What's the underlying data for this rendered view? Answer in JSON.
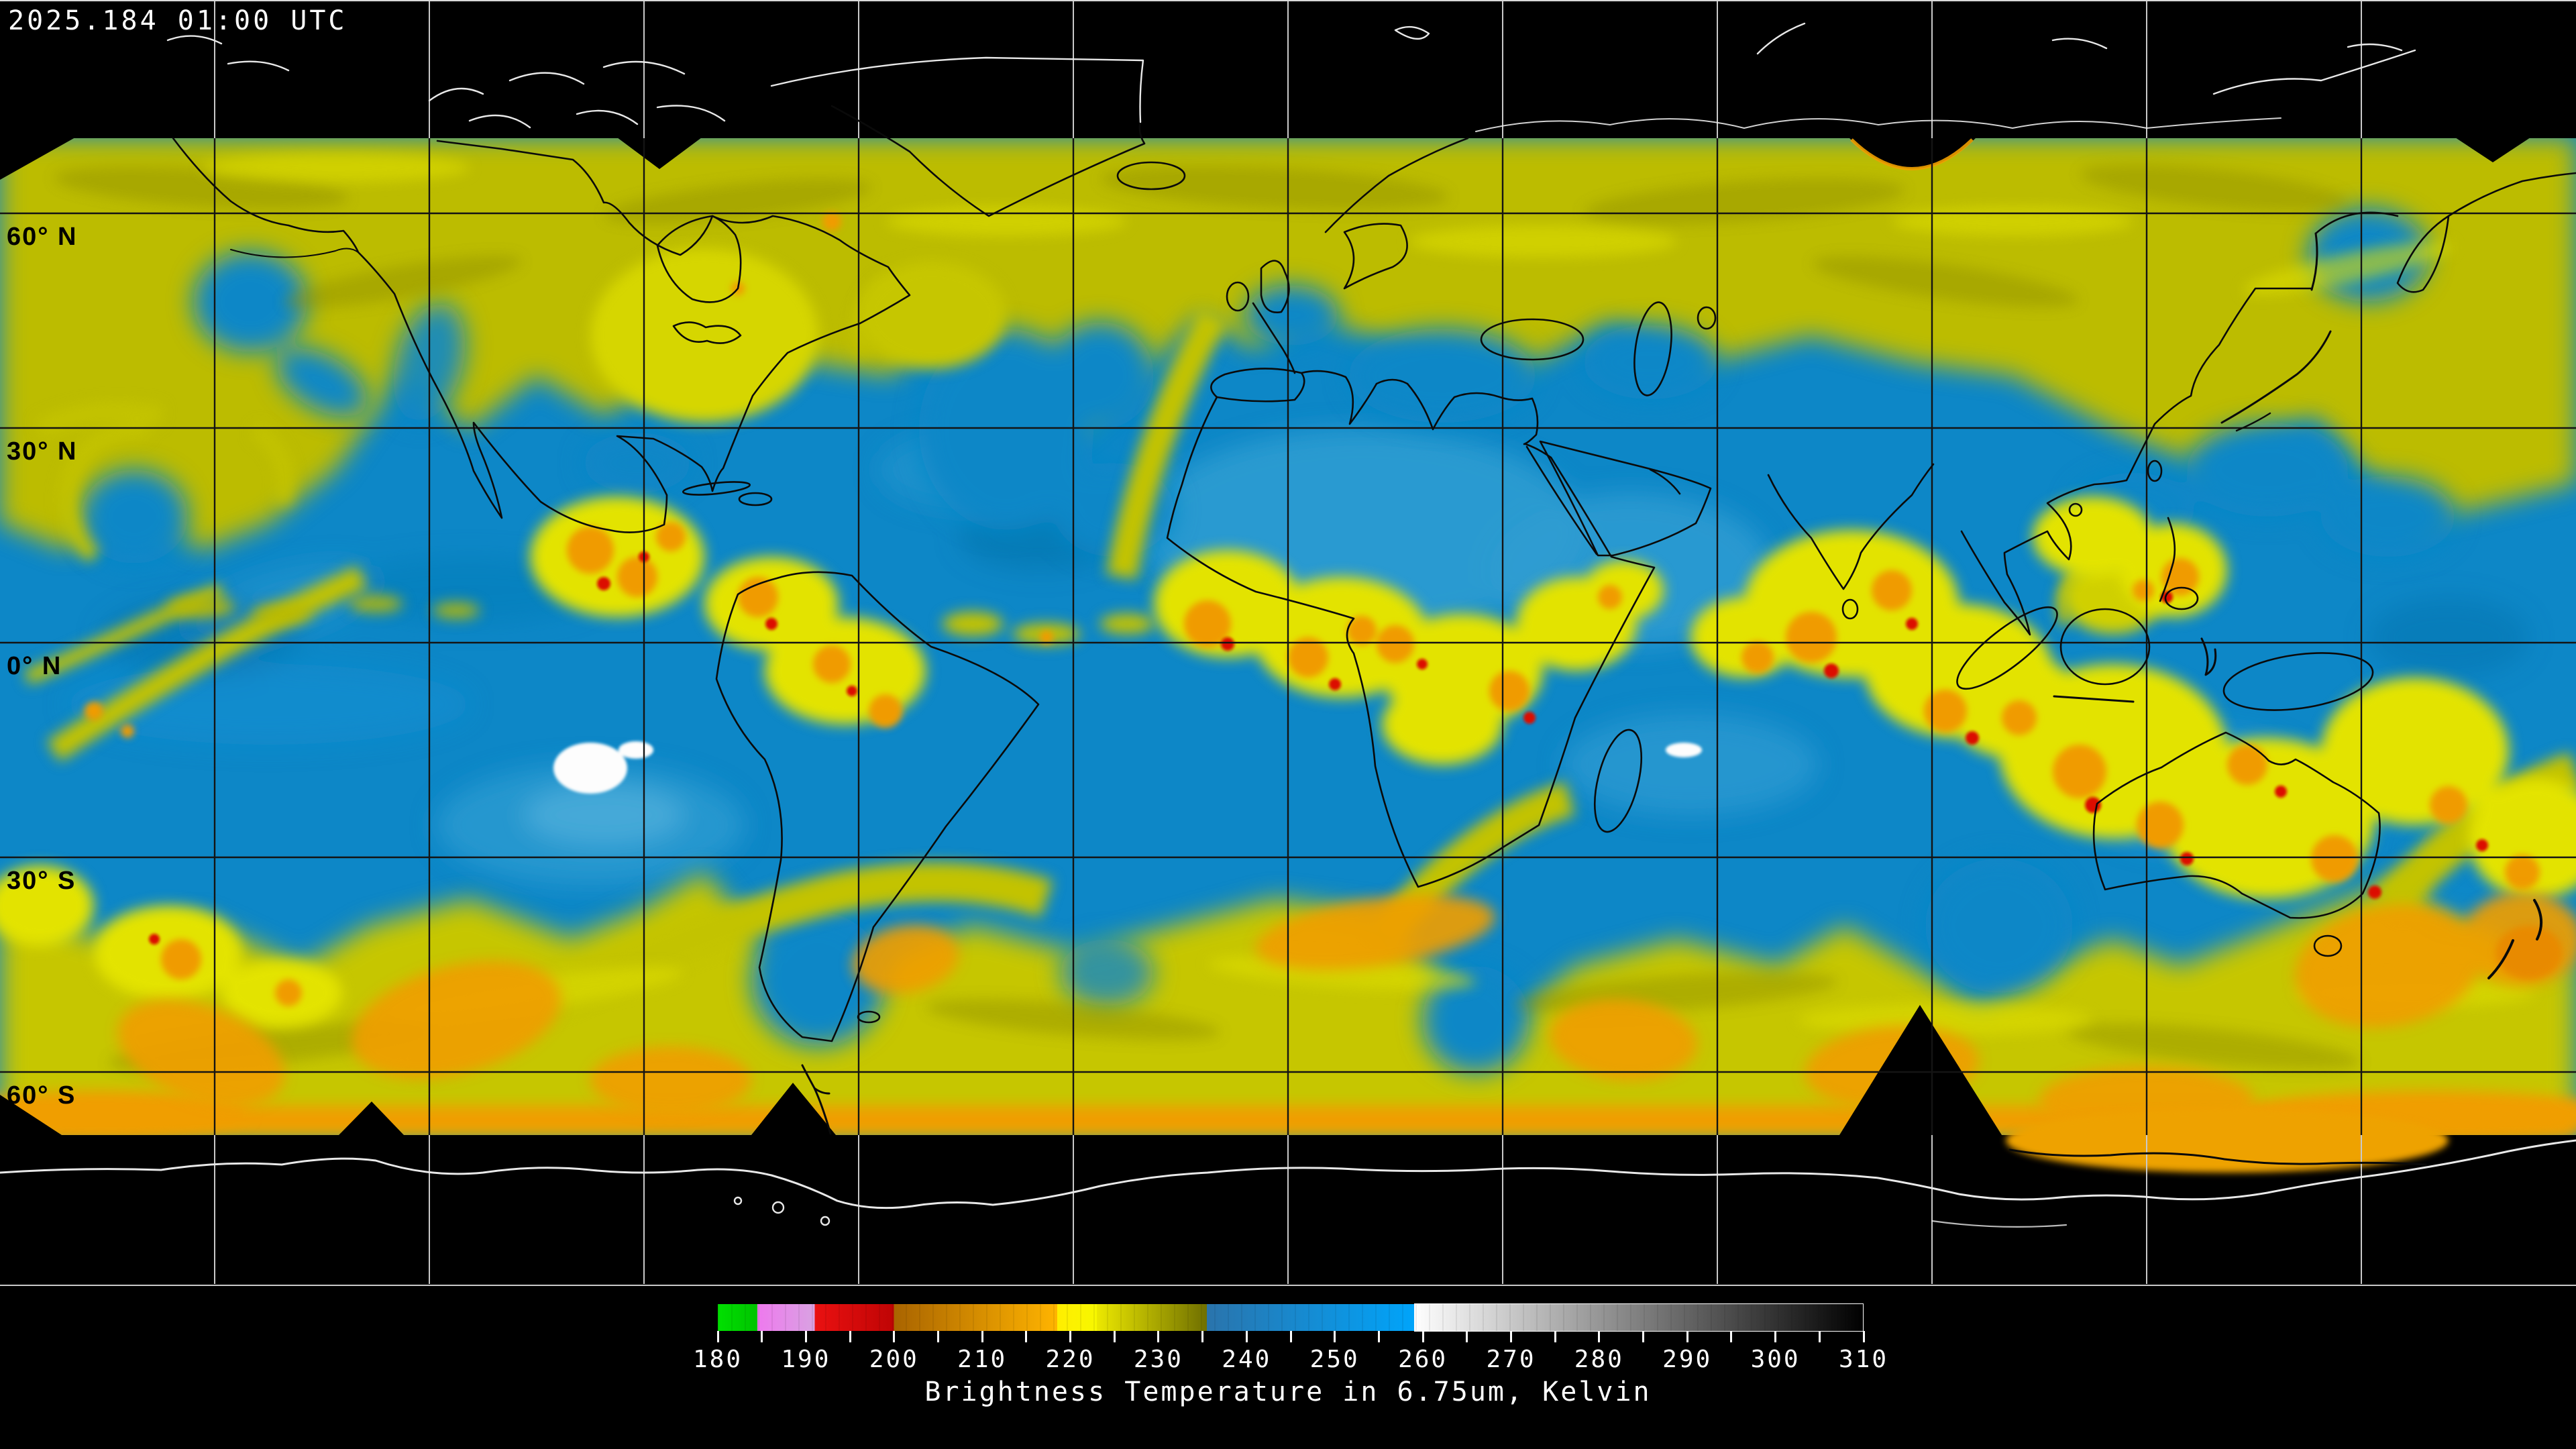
{
  "header": {
    "timestamp": "2025.184 01:00 UTC"
  },
  "map": {
    "description": "Global satellite water vapor brightness temperature mosaic",
    "projection": "equirectangular",
    "lat_labels": [
      {
        "text": "60° N"
      },
      {
        "text": "30° N"
      },
      {
        "text": "0° N"
      },
      {
        "text": "30° S"
      },
      {
        "text": "60° S"
      }
    ],
    "grid_lon_interval_deg": 30,
    "grid_lat_interval_deg": 30,
    "colors": {
      "moist_cloud_yellow": "#c3c300",
      "dry_upper_air_blue": "#0d87c7",
      "convection_orange": "#f09b00",
      "deep_convection_red": "#dc0d00",
      "coldest_cloud_white": "#ffffff",
      "space_background": "#000000",
      "coastline_over_data": "#000000",
      "coastline_over_space": "#e8e8e8"
    }
  },
  "colorbar": {
    "title": "Brightness Temperature in 6.75um, Kelvin",
    "unit": "Kelvin",
    "min": 180,
    "max": 310,
    "minor_tick_step": 5,
    "major_tick_labels": [
      180,
      190,
      200,
      210,
      220,
      230,
      240,
      250,
      260,
      270,
      280,
      290,
      300,
      310
    ],
    "segments": [
      {
        "from": 180,
        "to": 184.5,
        "color_start": "#00e000",
        "color_end": "#00c300"
      },
      {
        "from": 184.5,
        "to": 191,
        "color_start": "#ee79ee",
        "color_end": "#d9a2e2"
      },
      {
        "from": 191,
        "to": 200,
        "color_start": "#ea1111",
        "color_end": "#bf0404"
      },
      {
        "from": 200,
        "to": 218.5,
        "color_start": "#a96400",
        "color_end": "#ffb400"
      },
      {
        "from": 218.5,
        "to": 223,
        "color_start": "#ffee00",
        "color_end": "#f7f700"
      },
      {
        "from": 223,
        "to": 235.5,
        "color_start": "#ece800",
        "color_end": "#6f6f00"
      },
      {
        "from": 235.5,
        "to": 259,
        "color_start": "#2a74ac",
        "color_end": "#00a4fa"
      },
      {
        "from": 259,
        "to": 310,
        "color_start": "#ffffff",
        "color_end": "#000000"
      }
    ]
  }
}
